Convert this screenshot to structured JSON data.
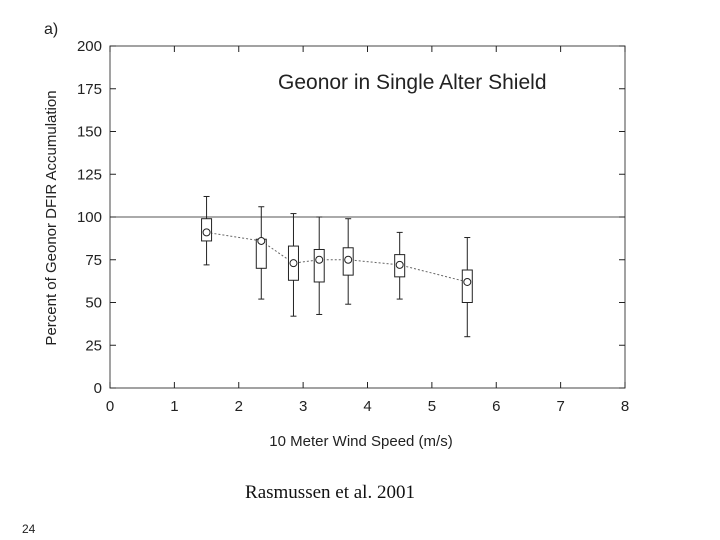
{
  "slide": {
    "citation": "Rasmussen et al. 2001",
    "page_number": "24"
  },
  "chart_data": {
    "type": "box",
    "panel_label": "a)",
    "title": "Geonor in Single Alter Shield",
    "xlabel": "10 Meter Wind Speed (m/s)",
    "ylabel": "Percent of Geonor DFIR Accumulation",
    "xlim": [
      0,
      8
    ],
    "ylim": [
      0,
      200
    ],
    "xticks": [
      0,
      1,
      2,
      3,
      4,
      5,
      6,
      7,
      8
    ],
    "yticks": [
      0,
      25,
      50,
      75,
      100,
      125,
      150,
      175,
      200
    ],
    "reference_line_y": 100,
    "grid": false,
    "boxes": [
      {
        "x": 1.5,
        "median": 91,
        "q1": 86,
        "q3": 99,
        "whisker_low": 72,
        "whisker_high": 112
      },
      {
        "x": 2.35,
        "median": 86,
        "q1": 70,
        "q3": 87,
        "whisker_low": 52,
        "whisker_high": 106
      },
      {
        "x": 2.85,
        "median": 73,
        "q1": 63,
        "q3": 83,
        "whisker_low": 42,
        "whisker_high": 102
      },
      {
        "x": 3.25,
        "median": 75,
        "q1": 62,
        "q3": 81,
        "whisker_low": 43,
        "whisker_high": 100
      },
      {
        "x": 3.7,
        "median": 75,
        "q1": 66,
        "q3": 82,
        "whisker_low": 49,
        "whisker_high": 99
      },
      {
        "x": 4.5,
        "median": 72,
        "q1": 65,
        "q3": 78,
        "whisker_low": 52,
        "whisker_high": 91
      },
      {
        "x": 5.55,
        "median": 62,
        "q1": 50,
        "q3": 69,
        "whisker_low": 30,
        "whisker_high": 88
      }
    ]
  },
  "colors": {
    "ink": "#222222",
    "reference_line": "#555555"
  }
}
